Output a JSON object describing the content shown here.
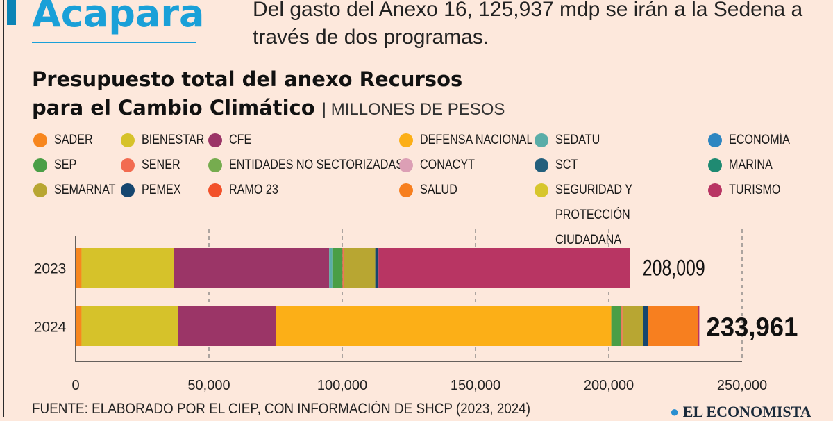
{
  "header": {
    "kicker": "Acapara",
    "dek": "Del gasto del Anexo 16, 125,937 mdp se irán a la Sedena a través de dos programas.",
    "title_line1": "Presupuesto total del anexo Recursos",
    "title_line2": "para el Cambio Climático",
    "separator": "|",
    "unit": "MILLONES DE PESOS"
  },
  "legend": [
    {
      "label": "SADER",
      "color": "#f7861e"
    },
    {
      "label": "BIENESTAR",
      "color": "#d6c22a"
    },
    {
      "label": "CFE",
      "color": "#9b3567"
    },
    {
      "label": "DEFENSA NACIONAL",
      "color": "#fcaf17"
    },
    {
      "label": "SEDATU",
      "color": "#5aada8"
    },
    {
      "label": "ECONOMÍA",
      "color": "#2e86c1"
    },
    {
      "label": "SEP",
      "color": "#4a9e46"
    },
    {
      "label": "SENER",
      "color": "#f26b50"
    },
    {
      "label": "ENTIDADES NO SECTORIZADAS",
      "color": "#76ac4f"
    },
    {
      "label": "CONACYT",
      "color": "#dc9fb5"
    },
    {
      "label": "SCT",
      "color": "#235f7c"
    },
    {
      "label": "MARINA",
      "color": "#1f8a72"
    },
    {
      "label": "SEMARNAT",
      "color": "#b8a632"
    },
    {
      "label": "PEMEX",
      "color": "#16466f"
    },
    {
      "label": "RAMO 23",
      "color": "#f2512a"
    },
    {
      "label": "SALUD",
      "color": "#f77f1f"
    },
    {
      "label": "SEGURIDAD Y PROTECCIÓN CIUDADANA",
      "color": "#d7c62c"
    },
    {
      "label": "TURISMO",
      "color": "#b83563"
    }
  ],
  "chart_data": {
    "type": "bar",
    "orientation": "horizontal",
    "stacked": true,
    "categories": [
      "2023",
      "2024"
    ],
    "totals": [
      "208,009",
      "233,961"
    ],
    "series": [
      {
        "name": "SADER",
        "color": "#f7861e",
        "values": [
          2200,
          2200
        ]
      },
      {
        "name": "BIENESTAR",
        "color": "#d6c22a",
        "values": [
          34700,
          36100
        ]
      },
      {
        "name": "CFE",
        "color": "#9b3567",
        "values": [
          58200,
          36700
        ]
      },
      {
        "name": "DEFENSA NACIONAL",
        "color": "#fcaf17",
        "values": [
          0,
          125937
        ]
      },
      {
        "name": "SEDATU",
        "color": "#5aada8",
        "values": [
          1200,
          0
        ]
      },
      {
        "name": "SEP",
        "color": "#4a9e46",
        "values": [
          3800,
          3800
        ]
      },
      {
        "name": "SENER",
        "color": "#f26b50",
        "values": [
          400,
          400
        ]
      },
      {
        "name": "SEMARNAT",
        "color": "#b8a632",
        "values": [
          11900,
          7800
        ]
      },
      {
        "name": "PEMEX",
        "color": "#16466f",
        "values": [
          1200,
          1700
        ]
      },
      {
        "name": "SALUD",
        "color": "#f77f1f",
        "values": [
          0,
          18824
        ]
      },
      {
        "name": "TURISMO",
        "color": "#b83563",
        "values": [
          94409,
          500
        ]
      }
    ],
    "xlim": [
      0,
      250000
    ],
    "xticks": [
      "0",
      "50,000",
      "100,000",
      "150,000",
      "200,000",
      "250,000"
    ],
    "xtick_values": [
      0,
      50000,
      100000,
      150000,
      200000,
      250000
    ],
    "grid": "vertical dashed",
    "legend_placement": "top"
  },
  "footer": {
    "source": "FUENTE: ELABORADO POR EL CIEP, CON INFORMACIÓN DE SHCP (2023, 2024)",
    "logo": "EL ECONOMISTA"
  }
}
